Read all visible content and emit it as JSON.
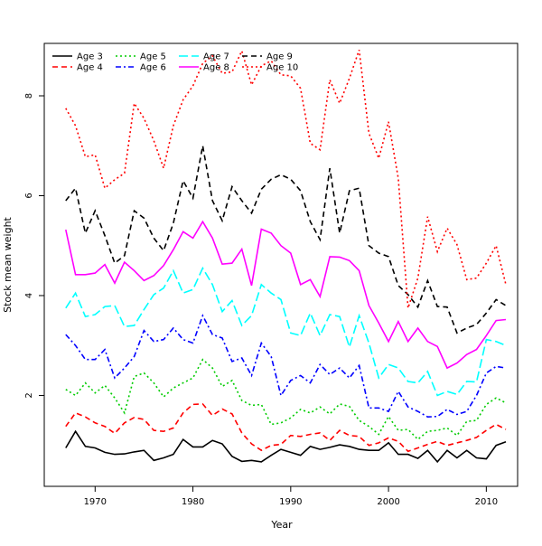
{
  "chart_data": {
    "type": "line",
    "title": "",
    "xlabel": "Year",
    "ylabel": "Stock mean weight",
    "xlim": [
      1964.8,
      2013.2
    ],
    "ylim": [
      0.18,
      9.05
    ],
    "xticks": [
      1970,
      1980,
      1990,
      2000,
      2010
    ],
    "yticks": [
      2,
      4,
      6,
      8
    ],
    "legend_position": "top-left",
    "x": [
      1967,
      1968,
      1969,
      1970,
      1971,
      1972,
      1973,
      1974,
      1975,
      1976,
      1977,
      1978,
      1979,
      1980,
      1981,
      1982,
      1983,
      1984,
      1985,
      1986,
      1987,
      1988,
      1989,
      1990,
      1991,
      1992,
      1993,
      1994,
      1995,
      1996,
      1997,
      1998,
      1999,
      2000,
      2001,
      2002,
      2003,
      2004,
      2005,
      2006,
      2007,
      2008,
      2009,
      2010,
      2011,
      2012
    ],
    "series": [
      {
        "name": "Age 3",
        "color": "#000000",
        "dash": "solid",
        "values": [
          0.95,
          1.28,
          0.98,
          0.95,
          0.86,
          0.82,
          0.83,
          0.87,
          0.9,
          0.7,
          0.75,
          0.82,
          1.12,
          0.97,
          0.97,
          1.1,
          1.03,
          0.78,
          0.68,
          0.7,
          0.67,
          0.8,
          0.92,
          0.86,
          0.8,
          0.98,
          0.92,
          0.96,
          1.01,
          0.98,
          0.92,
          0.9,
          0.9,
          1.05,
          0.82,
          0.82,
          0.74,
          0.9,
          0.67,
          0.9,
          0.75,
          0.9,
          0.75,
          0.73,
          1.0,
          1.07
        ]
      },
      {
        "name": "Age 4",
        "color": "#ff0000",
        "dash": "dash",
        "values": [
          1.38,
          1.65,
          1.57,
          1.45,
          1.38,
          1.24,
          1.45,
          1.56,
          1.52,
          1.3,
          1.28,
          1.35,
          1.65,
          1.82,
          1.83,
          1.6,
          1.73,
          1.63,
          1.25,
          1.03,
          0.9,
          1.0,
          1.02,
          1.2,
          1.18,
          1.22,
          1.25,
          1.1,
          1.3,
          1.2,
          1.18,
          1.0,
          1.05,
          1.15,
          1.08,
          0.88,
          0.95,
          1.02,
          1.08,
          1.0,
          1.05,
          1.1,
          1.16,
          1.3,
          1.42,
          1.32
        ]
      },
      {
        "name": "Age 5",
        "color": "#00cc00",
        "dash": "dot",
        "values": [
          2.12,
          2.0,
          2.25,
          2.05,
          2.2,
          1.95,
          1.65,
          2.38,
          2.45,
          2.25,
          1.97,
          2.15,
          2.25,
          2.35,
          2.72,
          2.55,
          2.18,
          2.3,
          1.9,
          1.8,
          1.82,
          1.42,
          1.45,
          1.55,
          1.72,
          1.65,
          1.77,
          1.63,
          1.83,
          1.78,
          1.5,
          1.38,
          1.22,
          1.58,
          1.3,
          1.32,
          1.12,
          1.28,
          1.3,
          1.35,
          1.2,
          1.48,
          1.5,
          1.82,
          1.95,
          1.85
        ]
      },
      {
        "name": "Age 6",
        "color": "#0000ff",
        "dash": "dashdot",
        "values": [
          3.22,
          3.0,
          2.72,
          2.72,
          2.92,
          2.35,
          2.55,
          2.78,
          3.3,
          3.08,
          3.12,
          3.35,
          3.12,
          3.05,
          3.6,
          3.22,
          3.15,
          2.68,
          2.75,
          2.4,
          3.05,
          2.78,
          2.0,
          2.3,
          2.4,
          2.25,
          2.62,
          2.42,
          2.55,
          2.35,
          2.6,
          1.75,
          1.75,
          1.68,
          2.08,
          1.77,
          1.68,
          1.57,
          1.58,
          1.72,
          1.62,
          1.68,
          2.0,
          2.45,
          2.58,
          2.55
        ]
      },
      {
        "name": "Age 7",
        "color": "#00ffff",
        "dash": "longdash",
        "values": [
          3.75,
          4.05,
          3.58,
          3.62,
          3.78,
          3.8,
          3.38,
          3.4,
          3.72,
          4.02,
          4.15,
          4.5,
          4.05,
          4.12,
          4.55,
          4.22,
          3.68,
          3.9,
          3.4,
          3.6,
          4.22,
          4.05,
          3.92,
          3.25,
          3.2,
          3.65,
          3.2,
          3.62,
          3.58,
          2.97,
          3.6,
          3.05,
          2.35,
          2.62,
          2.55,
          2.28,
          2.25,
          2.48,
          2.0,
          2.08,
          2.02,
          2.28,
          2.27,
          3.12,
          3.08,
          3.0
        ]
      },
      {
        "name": "Age 8",
        "color": "#ff00ff",
        "dash": "solid",
        "values": [
          5.32,
          4.42,
          4.42,
          4.45,
          4.62,
          4.25,
          4.67,
          4.5,
          4.3,
          4.4,
          4.6,
          4.92,
          5.28,
          5.15,
          5.48,
          5.15,
          4.63,
          4.65,
          4.93,
          4.2,
          5.33,
          5.25,
          5.0,
          4.85,
          4.22,
          4.32,
          3.98,
          4.78,
          4.77,
          4.7,
          4.5,
          3.8,
          3.45,
          3.08,
          3.48,
          3.08,
          3.35,
          3.08,
          2.98,
          2.55,
          2.65,
          2.82,
          2.92,
          3.2,
          3.5,
          3.52
        ]
      },
      {
        "name": "Age 9",
        "color": "#000000",
        "dash": "dash",
        "values": [
          5.9,
          6.15,
          5.25,
          5.7,
          5.2,
          4.65,
          4.8,
          5.7,
          5.55,
          5.15,
          4.9,
          5.45,
          6.3,
          5.95,
          7.0,
          5.9,
          5.5,
          6.18,
          5.9,
          5.65,
          6.13,
          6.33,
          6.42,
          6.33,
          6.1,
          5.48,
          5.12,
          6.55,
          5.25,
          6.1,
          6.15,
          5.0,
          4.85,
          4.78,
          4.2,
          4.02,
          3.77,
          4.3,
          3.78,
          3.77,
          3.25,
          3.35,
          3.42,
          3.65,
          3.92,
          3.8
        ]
      },
      {
        "name": "Age 10",
        "color": "#ff0000",
        "dash": "dot",
        "values": [
          7.75,
          7.4,
          6.78,
          6.82,
          6.15,
          6.32,
          6.45,
          7.85,
          7.55,
          7.1,
          6.55,
          7.4,
          7.92,
          8.2,
          8.65,
          8.8,
          8.45,
          8.48,
          8.9,
          8.22,
          8.6,
          8.7,
          8.42,
          8.4,
          8.15,
          7.05,
          6.92,
          8.32,
          7.85,
          8.35,
          8.92,
          7.25,
          6.75,
          7.48,
          6.35,
          3.75,
          4.35,
          5.58,
          4.88,
          5.35,
          5.02,
          4.32,
          4.35,
          4.65,
          5.0,
          4.22
        ]
      }
    ]
  }
}
